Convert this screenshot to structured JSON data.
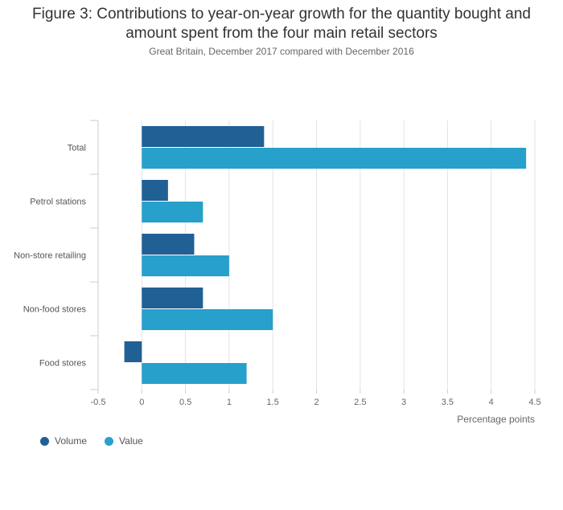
{
  "title_line1": "Figure 3: Contributions to year-on-year growth for the quantity bought and",
  "title_line2": "amount spent from the four main retail sectors",
  "subtitle": "Great Britain, December 2017 compared with December 2016",
  "chart_data": {
    "type": "bar",
    "orientation": "horizontal",
    "categories": [
      "Total",
      "Petrol stations",
      "Non-store retailing",
      "Non-food stores",
      "Food stores"
    ],
    "series": [
      {
        "name": "Volume",
        "color": "#206095",
        "values": [
          1.4,
          0.3,
          0.6,
          0.7,
          -0.2
        ]
      },
      {
        "name": "Value",
        "color": "#27a0cc",
        "values": [
          4.4,
          0.7,
          1.0,
          1.5,
          1.2
        ]
      }
    ],
    "xlim": [
      -0.5,
      4.5
    ],
    "xticks": [
      "-0.5",
      "0",
      "0.5",
      "1",
      "1.5",
      "2",
      "2.5",
      "3",
      "3.5",
      "4",
      "4.5"
    ],
    "xlabel": "Percentage points",
    "ylabel": "",
    "grid": true,
    "legend_position": "bottom-left"
  }
}
